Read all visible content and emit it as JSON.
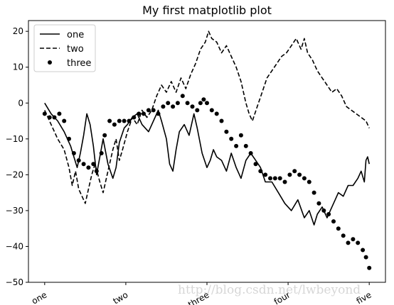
{
  "figure": {
    "title": "My first matplotlib plot",
    "watermark": "http://blog.csdn.net/lwbeyond"
  },
  "chart_data": {
    "type": "line",
    "title": "My first matplotlib plot",
    "xlabel": "",
    "ylabel": "",
    "xlim": [
      -50,
      1050
    ],
    "ylim": [
      -50,
      23
    ],
    "y_ticks": [
      20,
      10,
      0,
      -10,
      -20,
      -30,
      -40,
      -50
    ],
    "x_ticks": [
      0,
      250,
      500,
      750,
      1000
    ],
    "x_tick_labels": [
      "one",
      "two",
      "three",
      "four",
      "five"
    ],
    "x_tick_rotation": 30,
    "grid": false,
    "legend": "top-left",
    "series": [
      {
        "name": "one",
        "style": "solid",
        "color": "#000000",
        "points": [
          [
            0,
            0
          ],
          [
            20,
            -3
          ],
          [
            40,
            -5
          ],
          [
            60,
            -8
          ],
          [
            80,
            -12
          ],
          [
            90,
            -15
          ],
          [
            100,
            -18
          ],
          [
            110,
            -14
          ],
          [
            120,
            -9
          ],
          [
            130,
            -3
          ],
          [
            140,
            -6
          ],
          [
            150,
            -12
          ],
          [
            160,
            -20
          ],
          [
            170,
            -15
          ],
          [
            180,
            -10
          ],
          [
            195,
            -17
          ],
          [
            210,
            -21
          ],
          [
            220,
            -18
          ],
          [
            230,
            -11
          ],
          [
            245,
            -7
          ],
          [
            255,
            -6
          ],
          [
            270,
            -4
          ],
          [
            285,
            -3
          ],
          [
            300,
            -6
          ],
          [
            320,
            -8
          ],
          [
            340,
            -4
          ],
          [
            350,
            -2
          ],
          [
            360,
            -5
          ],
          [
            375,
            -10
          ],
          [
            385,
            -17
          ],
          [
            395,
            -19
          ],
          [
            405,
            -13
          ],
          [
            415,
            -8
          ],
          [
            430,
            -6
          ],
          [
            445,
            -9
          ],
          [
            460,
            -3
          ],
          [
            470,
            -7
          ],
          [
            485,
            -14
          ],
          [
            500,
            -18
          ],
          [
            510,
            -16
          ],
          [
            520,
            -13
          ],
          [
            530,
            -15
          ],
          [
            545,
            -16
          ],
          [
            560,
            -19
          ],
          [
            575,
            -14
          ],
          [
            590,
            -18
          ],
          [
            605,
            -21
          ],
          [
            620,
            -16
          ],
          [
            635,
            -14
          ],
          [
            650,
            -16
          ],
          [
            665,
            -18
          ],
          [
            680,
            -22
          ],
          [
            700,
            -22
          ],
          [
            720,
            -25
          ],
          [
            740,
            -28
          ],
          [
            760,
            -30
          ],
          [
            780,
            -27
          ],
          [
            800,
            -32
          ],
          [
            815,
            -30
          ],
          [
            830,
            -34
          ],
          [
            840,
            -31
          ],
          [
            855,
            -29
          ],
          [
            870,
            -32
          ],
          [
            880,
            -30
          ],
          [
            895,
            -27
          ],
          [
            905,
            -25
          ],
          [
            920,
            -26
          ],
          [
            935,
            -23
          ],
          [
            950,
            -23
          ],
          [
            965,
            -21
          ],
          [
            975,
            -19
          ],
          [
            985,
            -22
          ],
          [
            990,
            -16
          ],
          [
            995,
            -15
          ],
          [
            1000,
            -17
          ]
        ]
      },
      {
        "name": "two",
        "style": "dashed",
        "color": "#000000",
        "points": [
          [
            0,
            -2
          ],
          [
            20,
            -6
          ],
          [
            40,
            -10
          ],
          [
            60,
            -13
          ],
          [
            75,
            -18
          ],
          [
            85,
            -23
          ],
          [
            95,
            -19
          ],
          [
            105,
            -24
          ],
          [
            115,
            -26
          ],
          [
            125,
            -28
          ],
          [
            135,
            -24
          ],
          [
            145,
            -20
          ],
          [
            155,
            -17
          ],
          [
            170,
            -22
          ],
          [
            180,
            -25
          ],
          [
            195,
            -19
          ],
          [
            210,
            -13
          ],
          [
            220,
            -10
          ],
          [
            230,
            -16
          ],
          [
            240,
            -13
          ],
          [
            255,
            -8
          ],
          [
            270,
            -4
          ],
          [
            285,
            -6
          ],
          [
            300,
            -2
          ],
          [
            315,
            -4
          ],
          [
            330,
            -2
          ],
          [
            345,
            2
          ],
          [
            360,
            5
          ],
          [
            375,
            3
          ],
          [
            390,
            6
          ],
          [
            405,
            3
          ],
          [
            420,
            7
          ],
          [
            435,
            4
          ],
          [
            450,
            8
          ],
          [
            465,
            11
          ],
          [
            480,
            15
          ],
          [
            495,
            17
          ],
          [
            505,
            20
          ],
          [
            515,
            18
          ],
          [
            530,
            17
          ],
          [
            545,
            14
          ],
          [
            560,
            16
          ],
          [
            575,
            13
          ],
          [
            590,
            10
          ],
          [
            605,
            6
          ],
          [
            620,
            0
          ],
          [
            630,
            -3
          ],
          [
            640,
            -5
          ],
          [
            655,
            -1
          ],
          [
            670,
            3
          ],
          [
            685,
            7
          ],
          [
            700,
            9
          ],
          [
            715,
            11
          ],
          [
            730,
            13
          ],
          [
            745,
            14
          ],
          [
            760,
            16
          ],
          [
            775,
            18
          ],
          [
            790,
            15
          ],
          [
            800,
            18
          ],
          [
            810,
            14
          ],
          [
            825,
            12
          ],
          [
            840,
            9
          ],
          [
            855,
            7
          ],
          [
            870,
            5
          ],
          [
            885,
            3
          ],
          [
            900,
            4
          ],
          [
            915,
            2
          ],
          [
            930,
            -1
          ],
          [
            945,
            -2
          ],
          [
            960,
            -3
          ],
          [
            975,
            -4
          ],
          [
            990,
            -5
          ],
          [
            1000,
            -7
          ]
        ]
      },
      {
        "name": "three",
        "style": "dots",
        "color": "#000000",
        "points": [
          [
            0,
            -3
          ],
          [
            15,
            -4
          ],
          [
            30,
            -4
          ],
          [
            45,
            -3
          ],
          [
            60,
            -5
          ],
          [
            75,
            -10
          ],
          [
            90,
            -14
          ],
          [
            105,
            -16
          ],
          [
            120,
            -17
          ],
          [
            135,
            -18
          ],
          [
            150,
            -17
          ],
          [
            160,
            -19
          ],
          [
            175,
            -14
          ],
          [
            185,
            -9
          ],
          [
            200,
            -5
          ],
          [
            215,
            -6
          ],
          [
            230,
            -5
          ],
          [
            245,
            -5
          ],
          [
            260,
            -5
          ],
          [
            275,
            -4
          ],
          [
            290,
            -3
          ],
          [
            305,
            -3
          ],
          [
            320,
            -2
          ],
          [
            335,
            -2
          ],
          [
            350,
            -3
          ],
          [
            365,
            -1
          ],
          [
            380,
            0
          ],
          [
            395,
            -1
          ],
          [
            410,
            0
          ],
          [
            425,
            2
          ],
          [
            440,
            0
          ],
          [
            455,
            -1
          ],
          [
            470,
            -2
          ],
          [
            480,
            0
          ],
          [
            490,
            1
          ],
          [
            500,
            0
          ],
          [
            515,
            -2
          ],
          [
            530,
            -3
          ],
          [
            545,
            -5
          ],
          [
            560,
            -8
          ],
          [
            575,
            -10
          ],
          [
            590,
            -12
          ],
          [
            605,
            -9
          ],
          [
            620,
            -12
          ],
          [
            635,
            -14
          ],
          [
            650,
            -17
          ],
          [
            665,
            -19
          ],
          [
            680,
            -20
          ],
          [
            695,
            -21
          ],
          [
            710,
            -21
          ],
          [
            725,
            -21
          ],
          [
            740,
            -22
          ],
          [
            755,
            -20
          ],
          [
            770,
            -19
          ],
          [
            785,
            -20
          ],
          [
            800,
            -21
          ],
          [
            815,
            -22
          ],
          [
            830,
            -25
          ],
          [
            845,
            -28
          ],
          [
            860,
            -30
          ],
          [
            875,
            -31
          ],
          [
            890,
            -33
          ],
          [
            905,
            -35
          ],
          [
            920,
            -37
          ],
          [
            935,
            -39
          ],
          [
            950,
            -38
          ],
          [
            965,
            -39
          ],
          [
            980,
            -41
          ],
          [
            990,
            -43
          ],
          [
            1000,
            -46
          ]
        ]
      }
    ]
  }
}
